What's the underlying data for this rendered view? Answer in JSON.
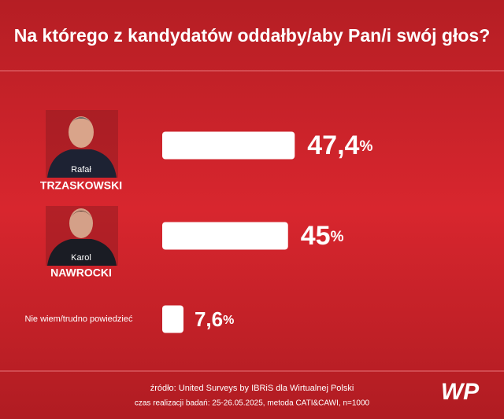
{
  "chart_data": {
    "type": "bar",
    "title": "Na którego z kandydatów oddałby/aby Pan/i swój głos?",
    "categories": [
      [
        "Rafał",
        "TRZASKOWSKI"
      ],
      [
        "Karol",
        "NAWROCKI"
      ],
      [
        "Nie wiem/trudno powiedzieć"
      ]
    ],
    "values": [
      47.4,
      45,
      7.6
    ],
    "value_labels": [
      "47,4%",
      "45%",
      "7,6%"
    ],
    "color": "#ffffff",
    "source": "źródło: United Surveys by IBRiS dla Wirtualnej Polski",
    "note": "czas realizacji badań: 25-26.05.2025, metoda CATI&CAWI, n=1000",
    "logo": "WP"
  }
}
